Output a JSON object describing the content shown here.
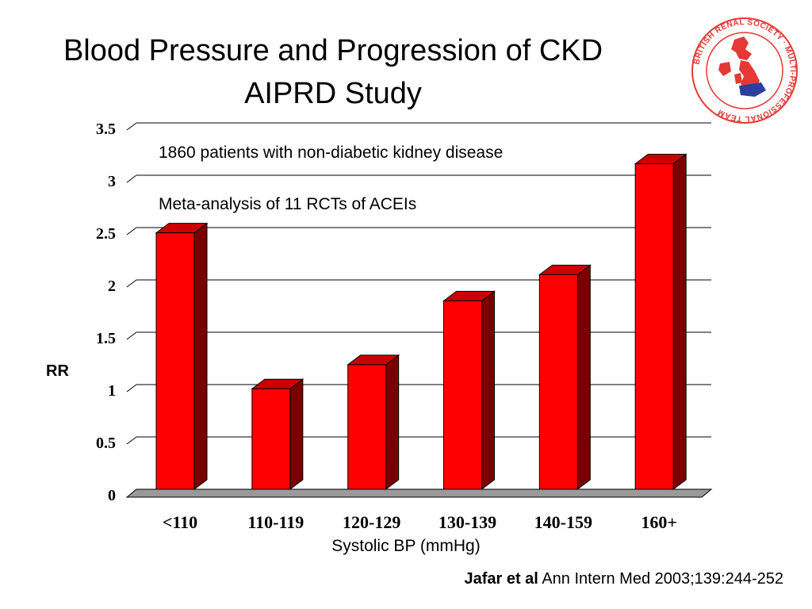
{
  "title_line1": "Blood Pressure and Progression of CKD",
  "title_line2": "AIPRD Study",
  "logo": {
    "icon": "british-renal-society-logo",
    "text": "BRITISH RENAL SOCIETY · MULTI-PROFESSIONAL TEAM",
    "colors": {
      "ring": "#e53935",
      "map_red": "#e53935",
      "map_blue": "#2c3e9e"
    }
  },
  "annotations": [
    "1860 patients with non-diabetic kidney disease",
    "Meta-analysis of 11 RCTs of ACEIs"
  ],
  "citation": {
    "author": "Jafar et al",
    "source": "Ann Intern Med 2003;139:244-252"
  },
  "chart_data": {
    "type": "bar",
    "categories": [
      "<110",
      "110-119",
      "120-129",
      "130-139",
      "140-159",
      "160+"
    ],
    "values": [
      2.45,
      0.96,
      1.19,
      1.8,
      2.05,
      3.11
    ],
    "xlabel": "Systolic BP (mmHg)",
    "ylabel": "RR",
    "ylim": [
      0,
      3.5
    ],
    "yticks": [
      "0",
      "0.5",
      "1",
      "1.5",
      "2",
      "2.5",
      "3",
      "3.5"
    ],
    "grid": true,
    "colors": {
      "bar_front": "#ff0000",
      "bar_side": "#7a0000",
      "bar_top": "#cc0000",
      "floor": "#999999"
    }
  }
}
